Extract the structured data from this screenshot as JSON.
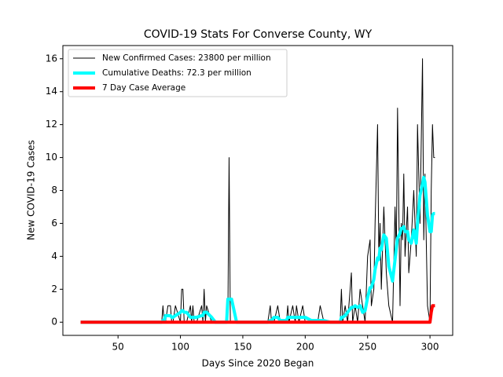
{
  "chart_data": {
    "type": "line",
    "title": "COVID-19 Stats For Converse County, WY",
    "xlabel": "Days Since 2020 Began",
    "ylabel": "New COVID-19 Cases",
    "x": [
      20,
      85,
      86,
      87,
      88,
      90,
      92,
      93,
      94,
      96,
      100,
      101,
      102,
      103,
      105,
      108,
      109,
      110,
      111,
      113,
      117,
      118,
      119,
      120,
      121,
      125,
      128,
      135,
      137,
      138,
      139,
      140,
      141,
      145,
      150,
      170,
      172,
      173,
      175,
      178,
      180,
      185,
      186,
      187,
      190,
      192,
      193,
      195,
      198,
      200,
      205,
      210,
      212,
      215,
      220,
      228,
      229,
      230,
      232,
      234,
      235,
      237,
      238,
      240,
      242,
      244,
      246,
      248,
      250,
      252,
      253,
      255,
      256,
      258,
      259,
      260,
      261,
      263,
      265,
      267,
      270,
      272,
      273,
      274,
      276,
      277,
      278,
      279,
      280,
      282,
      283,
      285,
      287,
      289,
      290,
      292,
      294,
      295,
      296,
      298,
      300,
      301,
      302,
      303,
      304
    ],
    "series": [
      {
        "name": "New Confirmed Cases: 23800 per million",
        "color": "#000000",
        "width": 1,
        "values": [
          0,
          0,
          1,
          0,
          0,
          1,
          1,
          0,
          0,
          1,
          0,
          2,
          2,
          0,
          0,
          1,
          0,
          1,
          0,
          0,
          1,
          0,
          2,
          0,
          1,
          0,
          0,
          0,
          0,
          0,
          10,
          0,
          0,
          0,
          0,
          0,
          1,
          0,
          0,
          1,
          0,
          0,
          1,
          0,
          1,
          0,
          1,
          0,
          1,
          0,
          0,
          0,
          1,
          0,
          0,
          0,
          2,
          0,
          1,
          0,
          1,
          3,
          0,
          1,
          0,
          2,
          1,
          0,
          4,
          5,
          1,
          2,
          6,
          12,
          4,
          6,
          2,
          7,
          3,
          1,
          0,
          7,
          4,
          13,
          1,
          6,
          5,
          9,
          4,
          7,
          3,
          5,
          8,
          4,
          12,
          6,
          16,
          5,
          9,
          1,
          0,
          8,
          12,
          10,
          10
        ]
      },
      {
        "name": "Cumulative Deaths: 72.3 per million",
        "color": "#00ffff",
        "width": 4,
        "values": [
          0,
          0,
          0.1,
          0.1,
          0.4,
          0.4,
          0.4,
          0.3,
          0.3,
          0.4,
          0.6,
          0.7,
          0.7,
          0.6,
          0.6,
          0.3,
          0.3,
          0.3,
          0.3,
          0.3,
          0.4,
          0.4,
          0.6,
          0.6,
          0.6,
          0.3,
          0,
          0,
          0,
          1.4,
          1.4,
          1.4,
          1.4,
          0,
          0,
          0,
          0.1,
          0.1,
          0.3,
          0.3,
          0.1,
          0.1,
          0.3,
          0.3,
          0.3,
          0.3,
          0.3,
          0.3,
          0.3,
          0.3,
          0.1,
          0.1,
          0.1,
          0.1,
          0,
          0,
          0.3,
          0.3,
          0.4,
          0.6,
          0.7,
          0.9,
          0.9,
          1.0,
          0.9,
          1.0,
          0.6,
          0.7,
          1.5,
          2.1,
          2.1,
          2.6,
          3.2,
          3.9,
          3.8,
          4.5,
          4.4,
          5.3,
          5.1,
          3.4,
          2.5,
          3.8,
          4.5,
          5.1,
          5.4,
          5.7,
          5.7,
          5.8,
          5.5,
          5.5,
          5.0,
          4.8,
          5.6,
          4.8,
          6.0,
          7.7,
          8.4,
          8.8,
          8.5,
          6.5,
          5.5,
          5.5,
          6.5,
          6.6,
          6.6
        ]
      },
      {
        "name": "7 Day Case Average",
        "color": "#ff0000",
        "width": 4,
        "values": [
          0,
          0,
          0,
          0,
          0,
          0,
          0,
          0,
          0,
          0,
          0,
          0,
          0,
          0,
          0,
          0,
          0,
          0,
          0,
          0,
          0,
          0,
          0,
          0,
          0,
          0,
          0,
          0,
          0,
          0,
          0,
          0,
          0,
          0,
          0,
          0,
          0,
          0,
          0,
          0,
          0,
          0,
          0,
          0,
          0,
          0,
          0,
          0,
          0,
          0,
          0,
          0,
          0,
          0,
          0,
          0,
          0,
          0,
          0,
          0,
          0,
          0,
          0,
          0,
          0,
          0,
          0,
          0,
          0,
          0,
          0,
          0,
          0,
          0,
          0,
          0,
          0,
          0,
          0,
          0,
          0,
          0,
          0,
          0,
          0,
          0,
          0,
          0,
          0,
          0,
          0,
          0,
          0,
          0,
          0,
          0,
          0,
          0,
          0,
          0,
          0,
          0.6,
          1,
          1,
          1
        ]
      }
    ],
    "xlim": [
      5.8,
      318.2
    ],
    "xticks": [
      50,
      100,
      150,
      200,
      250,
      300
    ],
    "ylim": [
      -0.8,
      16.8
    ],
    "yticks": [
      0,
      2,
      4,
      6,
      8,
      10,
      12,
      14,
      16
    ],
    "legend": "upper left"
  }
}
